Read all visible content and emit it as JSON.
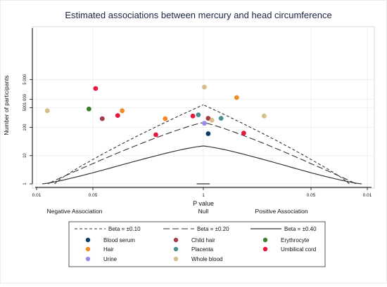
{
  "chart_data": {
    "type": "scatter",
    "title": "Estimated associations between mercury and head circumference",
    "xlabel": "P value",
    "ylabel": "Number of participants",
    "x_ticks": [
      {
        "label": "0.01",
        "pos": -3
      },
      {
        "label": "0.05",
        "pos": -2
      },
      {
        "label": "1",
        "pos": 0
      },
      {
        "label": "0.05",
        "pos": 2
      },
      {
        "label": "0.01",
        "pos": 3
      }
    ],
    "y_ticks": [
      {
        "label": "1",
        "value": 1
      },
      {
        "label": "10",
        "value": 10
      },
      {
        "label": "100",
        "value": 100
      },
      {
        "label": "500",
        "value": 500
      },
      {
        "label": "1 000",
        "value": 1000
      },
      {
        "label": "5 000",
        "value": 5000
      }
    ],
    "direction_labels": {
      "negative": "Negative Association",
      "null": "Null",
      "positive": "Positive Association"
    },
    "contours": [
      {
        "label": "Beta = ±0.10",
        "style": "short-dash"
      },
      {
        "label": "Beta = ±0.20",
        "style": "long-dash"
      },
      {
        "label": "Beta = ±0.40",
        "style": "solid"
      }
    ],
    "series": [
      {
        "name": "Blood serum",
        "color": "#0d3b66",
        "points": [
          [
            0.09,
            60
          ]
        ]
      },
      {
        "name": "Child hair",
        "color": "#a33a45",
        "points": [
          [
            -1.83,
            205
          ],
          [
            0.09,
            210
          ]
        ]
      },
      {
        "name": "Erythrocyte",
        "color": "#3b7f2a",
        "points": [
          [
            -2.07,
            450
          ]
        ]
      },
      {
        "name": "Hair",
        "color": "#f28a24",
        "points": [
          [
            -1.47,
            390
          ],
          [
            -0.69,
            205
          ],
          [
            0.62,
            1150
          ]
        ]
      },
      {
        "name": "Placenta",
        "color": "#4a8f8e",
        "points": [
          [
            -0.09,
            280
          ],
          [
            0.33,
            210
          ]
        ]
      },
      {
        "name": "Umbilical cord",
        "color": "#e8173e",
        "points": [
          [
            -1.95,
            2400
          ],
          [
            -1.55,
            265
          ],
          [
            -0.86,
            55
          ],
          [
            -0.19,
            255
          ],
          [
            0.75,
            63
          ]
        ]
      },
      {
        "name": "Urine",
        "color": "#9a8be6",
        "points": [
          [
            0.02,
            140
          ]
        ]
      },
      {
        "name": "Whole blood",
        "color": "#d4c08a",
        "points": [
          [
            -2.81,
            390
          ],
          [
            0.02,
            2700
          ],
          [
            0.16,
            180
          ],
          [
            1.13,
            255
          ]
        ]
      }
    ]
  }
}
